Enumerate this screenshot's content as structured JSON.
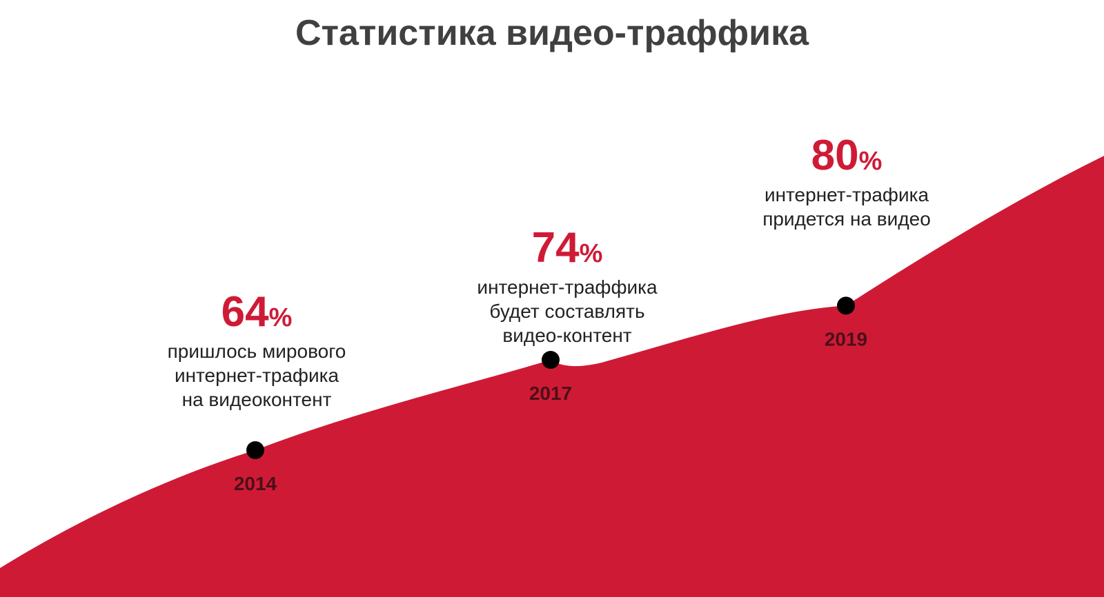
{
  "title": "Статистика видео-траффика",
  "colors": {
    "area": "#cf1a36",
    "marker": "#000000",
    "year_text": "#4a1018",
    "title": "#404040"
  },
  "chart_data": {
    "type": "area",
    "title": "Статистика видео-траффика",
    "x": [
      "2014",
      "2017",
      "2019"
    ],
    "values": [
      64,
      74,
      80
    ],
    "unit": "%",
    "grid": false,
    "annotations": [
      {
        "year": "2014",
        "value": "64",
        "unit": "%",
        "text": "пришлось мирового\nинтернет-трафика\nна видеоконтент"
      },
      {
        "year": "2017",
        "value": "74",
        "unit": "%",
        "text": "интернет-траффика\nбудет составлять\nвидео-контент"
      },
      {
        "year": "2019",
        "value": "80",
        "unit": "%",
        "text": "интернет-трафика\nпридется на видео"
      }
    ]
  }
}
